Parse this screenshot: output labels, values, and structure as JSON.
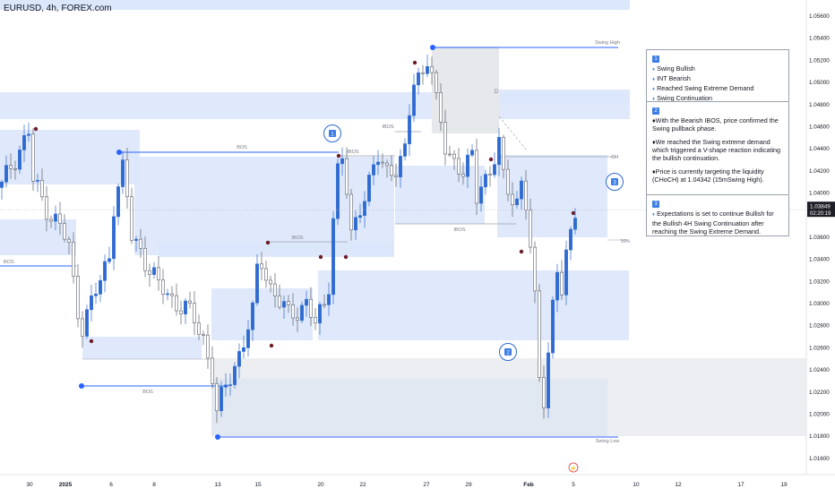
{
  "symbol": {
    "title": "EURUSD, 4h, FOREX.com"
  },
  "price_axis": {
    "labels": [
      "1.05600",
      "1.05400",
      "1.05200",
      "1.05000",
      "1.04800",
      "1.04600",
      "1.04400",
      "1.04200",
      "1.04000",
      "1.03800",
      "1.03600",
      "1.03400",
      "1.03200",
      "1.03000",
      "1.02800",
      "1.02600",
      "1.02400",
      "1.02200",
      "1.02000",
      "1.01800",
      "1.01600"
    ],
    "current_price": "1.03849",
    "countdown": "02:20:19",
    "current_price_color": "#131722"
  },
  "time_axis": {
    "labels": [
      {
        "text": "30",
        "bold": false
      },
      {
        "text": "2025",
        "bold": true
      },
      {
        "text": "6",
        "bold": false
      },
      {
        "text": "8",
        "bold": false
      },
      {
        "text": "13",
        "bold": false
      },
      {
        "text": "15",
        "bold": false
      },
      {
        "text": "20",
        "bold": false
      },
      {
        "text": "22",
        "bold": false
      },
      {
        "text": "27",
        "bold": false
      },
      {
        "text": "29",
        "bold": false
      },
      {
        "text": "Feb",
        "bold": true
      },
      {
        "text": "5",
        "bold": false
      },
      {
        "text": "10",
        "bold": false
      },
      {
        "text": "12",
        "bold": false
      },
      {
        "text": "17",
        "bold": false
      },
      {
        "text": "19",
        "bold": false
      }
    ]
  },
  "annotations": {
    "swing_high": "Swing High",
    "swing_low": "Swing Low",
    "bos_labels": [
      "BOS",
      "BOS",
      "BOS"
    ],
    "ibos_labels": [
      "IBOS",
      "IBOS",
      "IBOS",
      "IBOS"
    ],
    "choch": "CH",
    "fifty_pct": "50%",
    "zone_d": "D",
    "circle_labels": [
      "1",
      "2",
      "3"
    ]
  },
  "notes": {
    "section1": {
      "badge": "1",
      "lines": [
        "Swing Bullish",
        "INT Bearish",
        "Reached Swing Extreme Demand",
        "Swing Continuation"
      ]
    },
    "section2": {
      "badge": "2",
      "paragraphs": [
        "With the Bearish IBOS, price confirmed the Swing pullback phase.",
        "We reached the Swing extreme demand which triggered a V-shape reaction indicating the bullish continuation.",
        "Price is currently targeting the liquidity (CHoCH) at 1.04342 (15mSwing High)."
      ]
    },
    "section3": {
      "badge": "3",
      "paragraph": "Expectations is set to continue Bullish for the Bullish 4H Swing Continuation after reaching the Swing Extreme Demand."
    },
    "bullet": "♦"
  },
  "colors": {
    "bull_candle": "#2e6ad1",
    "bear_candle": "#5d606b",
    "zone_blue": "#dbe7fb",
    "zone_grey": "#e6e8ec",
    "structure_line": "#2962ff",
    "badge": "#3d7ee6"
  },
  "chart_data": {
    "type": "candlestick",
    "symbol": "EURUSD",
    "timeframe": "4h",
    "price_range": [
      1.0155,
      1.0573
    ],
    "current_price": 1.03849,
    "key_levels": {
      "swing_high": 1.0535,
      "swing_low": 1.018,
      "choch_target": 1.04342
    },
    "price_path": [
      [
        0,
        1.0405
      ],
      [
        2,
        1.0425
      ],
      [
        4,
        1.044
      ],
      [
        6,
        1.0455
      ],
      [
        7,
        1.041
      ],
      [
        9,
        1.0395
      ],
      [
        11,
        1.038
      ],
      [
        13,
        1.037
      ],
      [
        15,
        1.035
      ],
      [
        16,
        1.032
      ],
      [
        17,
        1.0295
      ],
      [
        18,
        1.028
      ],
      [
        20,
        1.03
      ],
      [
        22,
        1.032
      ],
      [
        24,
        1.0345
      ],
      [
        25,
        1.039
      ],
      [
        26,
        1.0405
      ],
      [
        27,
        1.042
      ],
      [
        28,
        1.0395
      ],
      [
        29,
        1.036
      ],
      [
        31,
        1.035
      ],
      [
        33,
        1.033
      ],
      [
        35,
        1.0315
      ],
      [
        37,
        1.031
      ],
      [
        39,
        1.03
      ],
      [
        41,
        1.0295
      ],
      [
        43,
        1.0285
      ],
      [
        45,
        1.027
      ],
      [
        47,
        1.0235
      ],
      [
        48,
        1.02
      ],
      [
        50,
        1.0225
      ],
      [
        52,
        1.0245
      ],
      [
        54,
        1.0265
      ],
      [
        56,
        1.029
      ],
      [
        57,
        1.033
      ],
      [
        58,
        1.034
      ],
      [
        60,
        1.0315
      ],
      [
        62,
        1.03
      ],
      [
        64,
        1.029
      ],
      [
        66,
        1.0295
      ],
      [
        68,
        1.03
      ],
      [
        70,
        1.028
      ],
      [
        72,
        1.03
      ],
      [
        73,
        1.032
      ],
      [
        74,
        1.038
      ],
      [
        75,
        1.042
      ],
      [
        76,
        1.043
      ],
      [
        77,
        1.04
      ],
      [
        78,
        1.036
      ],
      [
        80,
        1.039
      ],
      [
        82,
        1.041
      ],
      [
        84,
        1.043
      ],
      [
        86,
        1.042
      ],
      [
        88,
        1.0425
      ],
      [
        90,
        1.0435
      ],
      [
        91,
        1.047
      ],
      [
        92,
        1.05
      ],
      [
        94,
        1.051
      ],
      [
        95,
        1.0525
      ],
      [
        96,
        1.051
      ],
      [
        97,
        1.048
      ],
      [
        98,
        1.046
      ],
      [
        99,
        1.044
      ],
      [
        101,
        1.043
      ],
      [
        103,
        1.042
      ],
      [
        105,
        1.043
      ],
      [
        106,
        1.0395
      ],
      [
        107,
        1.041
      ],
      [
        109,
        1.042
      ],
      [
        111,
        1.0445
      ],
      [
        112,
        1.041
      ],
      [
        113,
        1.04
      ],
      [
        115,
        1.0395
      ],
      [
        116,
        1.041
      ],
      [
        117,
        1.039
      ],
      [
        118,
        1.035
      ],
      [
        119,
        1.03
      ],
      [
        120,
        1.023
      ],
      [
        121,
        1.0215
      ],
      [
        122,
        1.026
      ],
      [
        123,
        1.03
      ],
      [
        124,
        1.033
      ],
      [
        125,
        1.031
      ],
      [
        126,
        1.034
      ],
      [
        127,
        1.036
      ],
      [
        128,
        1.0385
      ]
    ]
  }
}
